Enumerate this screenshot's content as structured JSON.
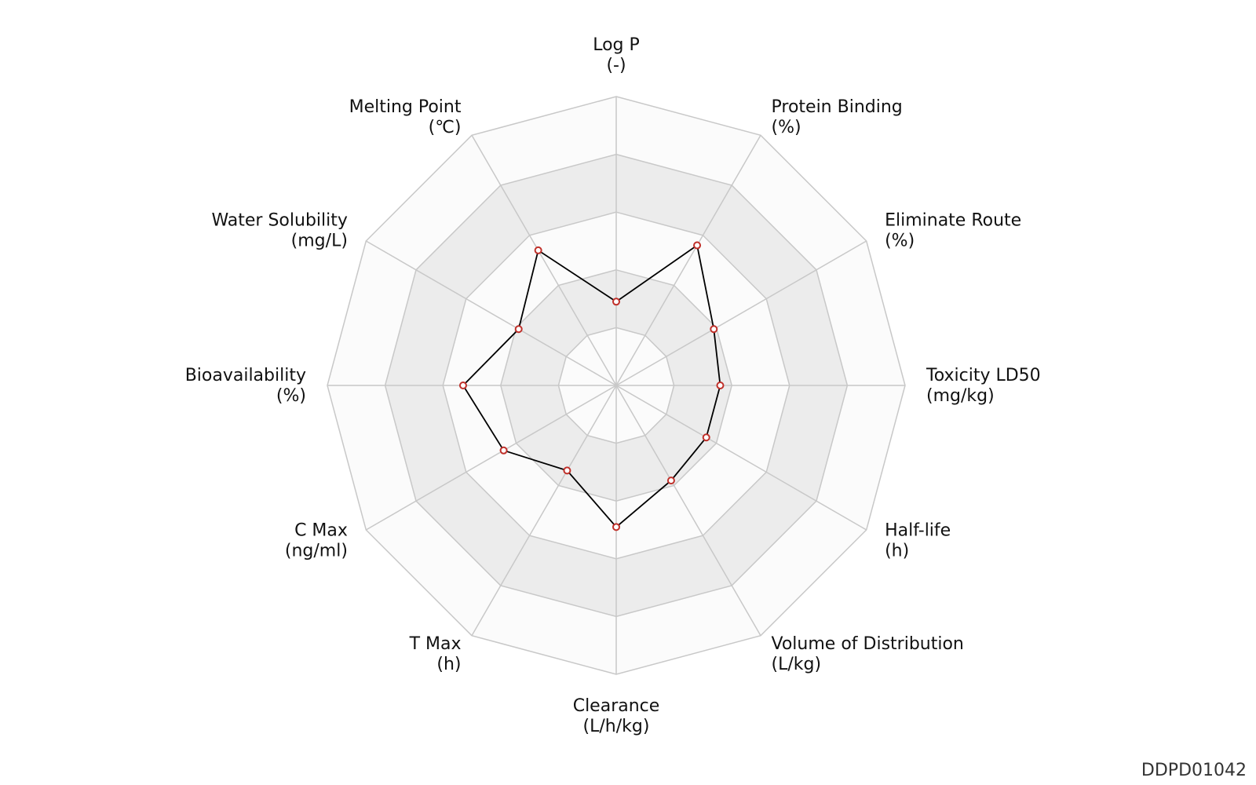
{
  "figure_id": "DDPD01042",
  "colors": {
    "band_light": "#fbfbfb",
    "band_dark": "#ececec",
    "grid_line": "#c8c8c8",
    "series_line": "#000000",
    "marker_edge": "#c0302a",
    "marker_fill": "#ffffff"
  },
  "chart_data": {
    "type": "radar",
    "title": "",
    "rings": 5,
    "range": [
      0,
      1
    ],
    "grid": true,
    "axes": [
      {
        "name": "Log P",
        "unit": "(-)"
      },
      {
        "name": "Protein Binding",
        "unit": "(%)"
      },
      {
        "name": "Eliminate Route",
        "unit": "(%)"
      },
      {
        "name": "Toxicity LD50",
        "unit": "(mg/kg)"
      },
      {
        "name": "Half-life",
        "unit": "(h)"
      },
      {
        "name": "Volume of Distribution",
        "unit": "(L/kg)"
      },
      {
        "name": "Clearance",
        "unit": "(L/h/kg)"
      },
      {
        "name": "T Max",
        "unit": "(h)"
      },
      {
        "name": "C Max",
        "unit": "(ng/ml)"
      },
      {
        "name": "Bioavailability",
        "unit": "(%)"
      },
      {
        "name": "Water Solubility",
        "unit": "(mg/L)"
      },
      {
        "name": "Melting Point",
        "unit": "(℃)"
      }
    ],
    "series": [
      {
        "values": [
          0.29,
          0.56,
          0.39,
          0.36,
          0.36,
          0.38,
          0.49,
          0.34,
          0.45,
          0.53,
          0.39,
          0.54
        ]
      }
    ]
  }
}
